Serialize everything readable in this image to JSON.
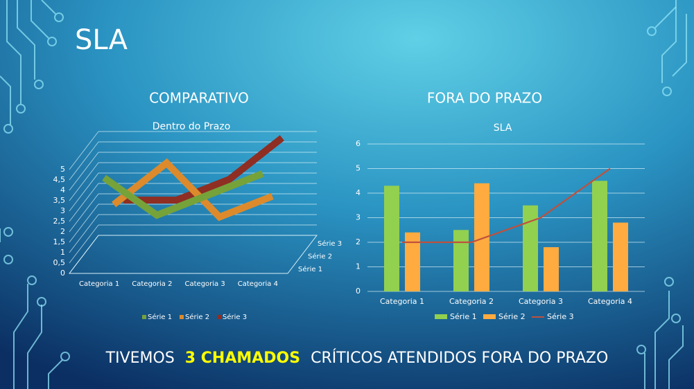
{
  "slide": {
    "title": "SLA",
    "footer": [
      "TIVEMOS",
      "3 CHAMADOS",
      "CRÍTICOS ATENDIDOS FORA DO PRAZO"
    ]
  },
  "chart_data": [
    {
      "type": "line3d",
      "heading": "COMPARATIVO",
      "title": "Dentro do Prazo",
      "categories": [
        "Categoria 1",
        "Categoria 2",
        "Categoria 3",
        "Categoria 4"
      ],
      "series": [
        {
          "name": "Série 1",
          "color": "#76a23a",
          "values": [
            4.3,
            2.5,
            3.5,
            4.5
          ]
        },
        {
          "name": "Série 2",
          "color": "#dc8a2c",
          "values": [
            2.4,
            4.4,
            1.8,
            2.8
          ]
        },
        {
          "name": "Série 3",
          "color": "#8f2e22",
          "values": [
            2,
            2,
            3,
            5
          ]
        }
      ],
      "ylim": [
        0,
        5
      ],
      "yticks": [
        0,
        {
          "value": 0.5,
          "label": "0,5"
        },
        1,
        {
          "value": 1.5,
          "label": "1,5"
        },
        2,
        {
          "value": 2.5,
          "label": "2,5"
        },
        3,
        {
          "value": 3.5,
          "label": "3,5"
        },
        4,
        {
          "value": 4.5,
          "label": "4,5"
        },
        5
      ],
      "grid": true,
      "legend": "bottom"
    },
    {
      "type": "combo",
      "heading": "FORA DO PRAZO",
      "title": "SLA",
      "categories": [
        "Categoria 1",
        "Categoria 2",
        "Categoria 3",
        "Categoria 4"
      ],
      "series": [
        {
          "name": "Série 1",
          "type": "bar",
          "color": "#92d050",
          "values": [
            4.3,
            2.5,
            3.5,
            4.5
          ]
        },
        {
          "name": "Série 2",
          "type": "bar",
          "color": "#ffab40",
          "values": [
            2.4,
            4.4,
            1.8,
            2.8
          ]
        },
        {
          "name": "Série 3",
          "type": "line",
          "color": "#c0503c",
          "values": [
            2,
            2,
            3,
            5
          ]
        }
      ],
      "ylim": [
        0,
        6
      ],
      "yticks": [
        0,
        1,
        2,
        3,
        4,
        5,
        6
      ],
      "grid": true,
      "legend": "bottom"
    }
  ]
}
